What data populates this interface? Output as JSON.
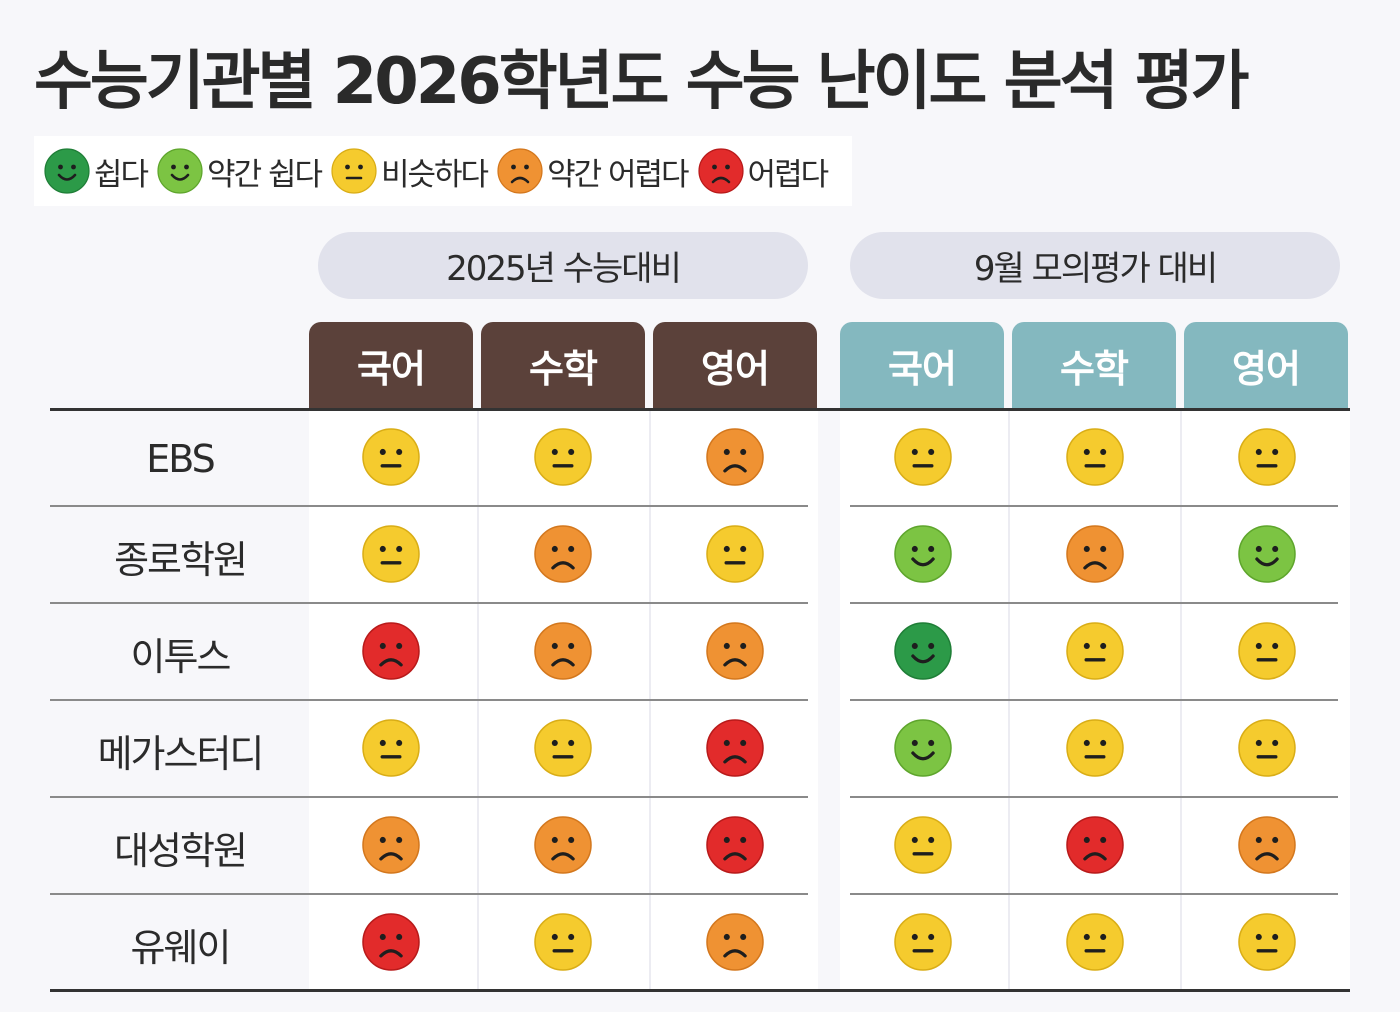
{
  "title": "수능기관별 2026학년도 수능 난이도 분석 평가",
  "legend": [
    {
      "key": "easy",
      "label": "쉽다",
      "color": "#2c9a48",
      "icon": "smile-face-icon"
    },
    {
      "key": "slightly_easy",
      "label": "약간 쉽다",
      "color": "#7cc443",
      "icon": "smile-face-icon"
    },
    {
      "key": "similar",
      "label": "비슷하다",
      "color": "#f5cb2e",
      "icon": "neutral-face-icon"
    },
    {
      "key": "slightly_hard",
      "label": "약간 어렵다",
      "color": "#ef9233",
      "icon": "frown-face-icon"
    },
    {
      "key": "hard",
      "label": "어렵다",
      "color": "#e22b2b",
      "icon": "frown-face-icon"
    }
  ],
  "groups": [
    {
      "label": "2025년 수능대비",
      "header_color": "#5b413a",
      "columns": [
        "국어",
        "수학",
        "영어"
      ]
    },
    {
      "label": "9월 모의평가 대비",
      "header_color": "#84b8bf",
      "columns": [
        "국어",
        "수학",
        "영어"
      ]
    }
  ],
  "chart_data": {
    "type": "table",
    "title": "수능기관별 2026학년도 수능 난이도 분석 평가",
    "rows": [
      {
        "name": "EBS",
        "values": [
          "similar",
          "similar",
          "slightly_hard",
          "similar",
          "similar",
          "similar"
        ]
      },
      {
        "name": "종로학원",
        "values": [
          "similar",
          "slightly_hard",
          "similar",
          "slightly_easy",
          "slightly_hard",
          "slightly_easy"
        ]
      },
      {
        "name": "이투스",
        "values": [
          "hard",
          "slightly_hard",
          "slightly_hard",
          "easy",
          "similar",
          "similar"
        ]
      },
      {
        "name": "메가스터디",
        "values": [
          "similar",
          "similar",
          "hard",
          "slightly_easy",
          "similar",
          "similar"
        ]
      },
      {
        "name": "대성학원",
        "values": [
          "slightly_hard",
          "slightly_hard",
          "hard",
          "similar",
          "hard",
          "slightly_hard"
        ]
      },
      {
        "name": "유웨이",
        "values": [
          "hard",
          "similar",
          "slightly_hard",
          "similar",
          "similar",
          "similar"
        ]
      }
    ]
  }
}
